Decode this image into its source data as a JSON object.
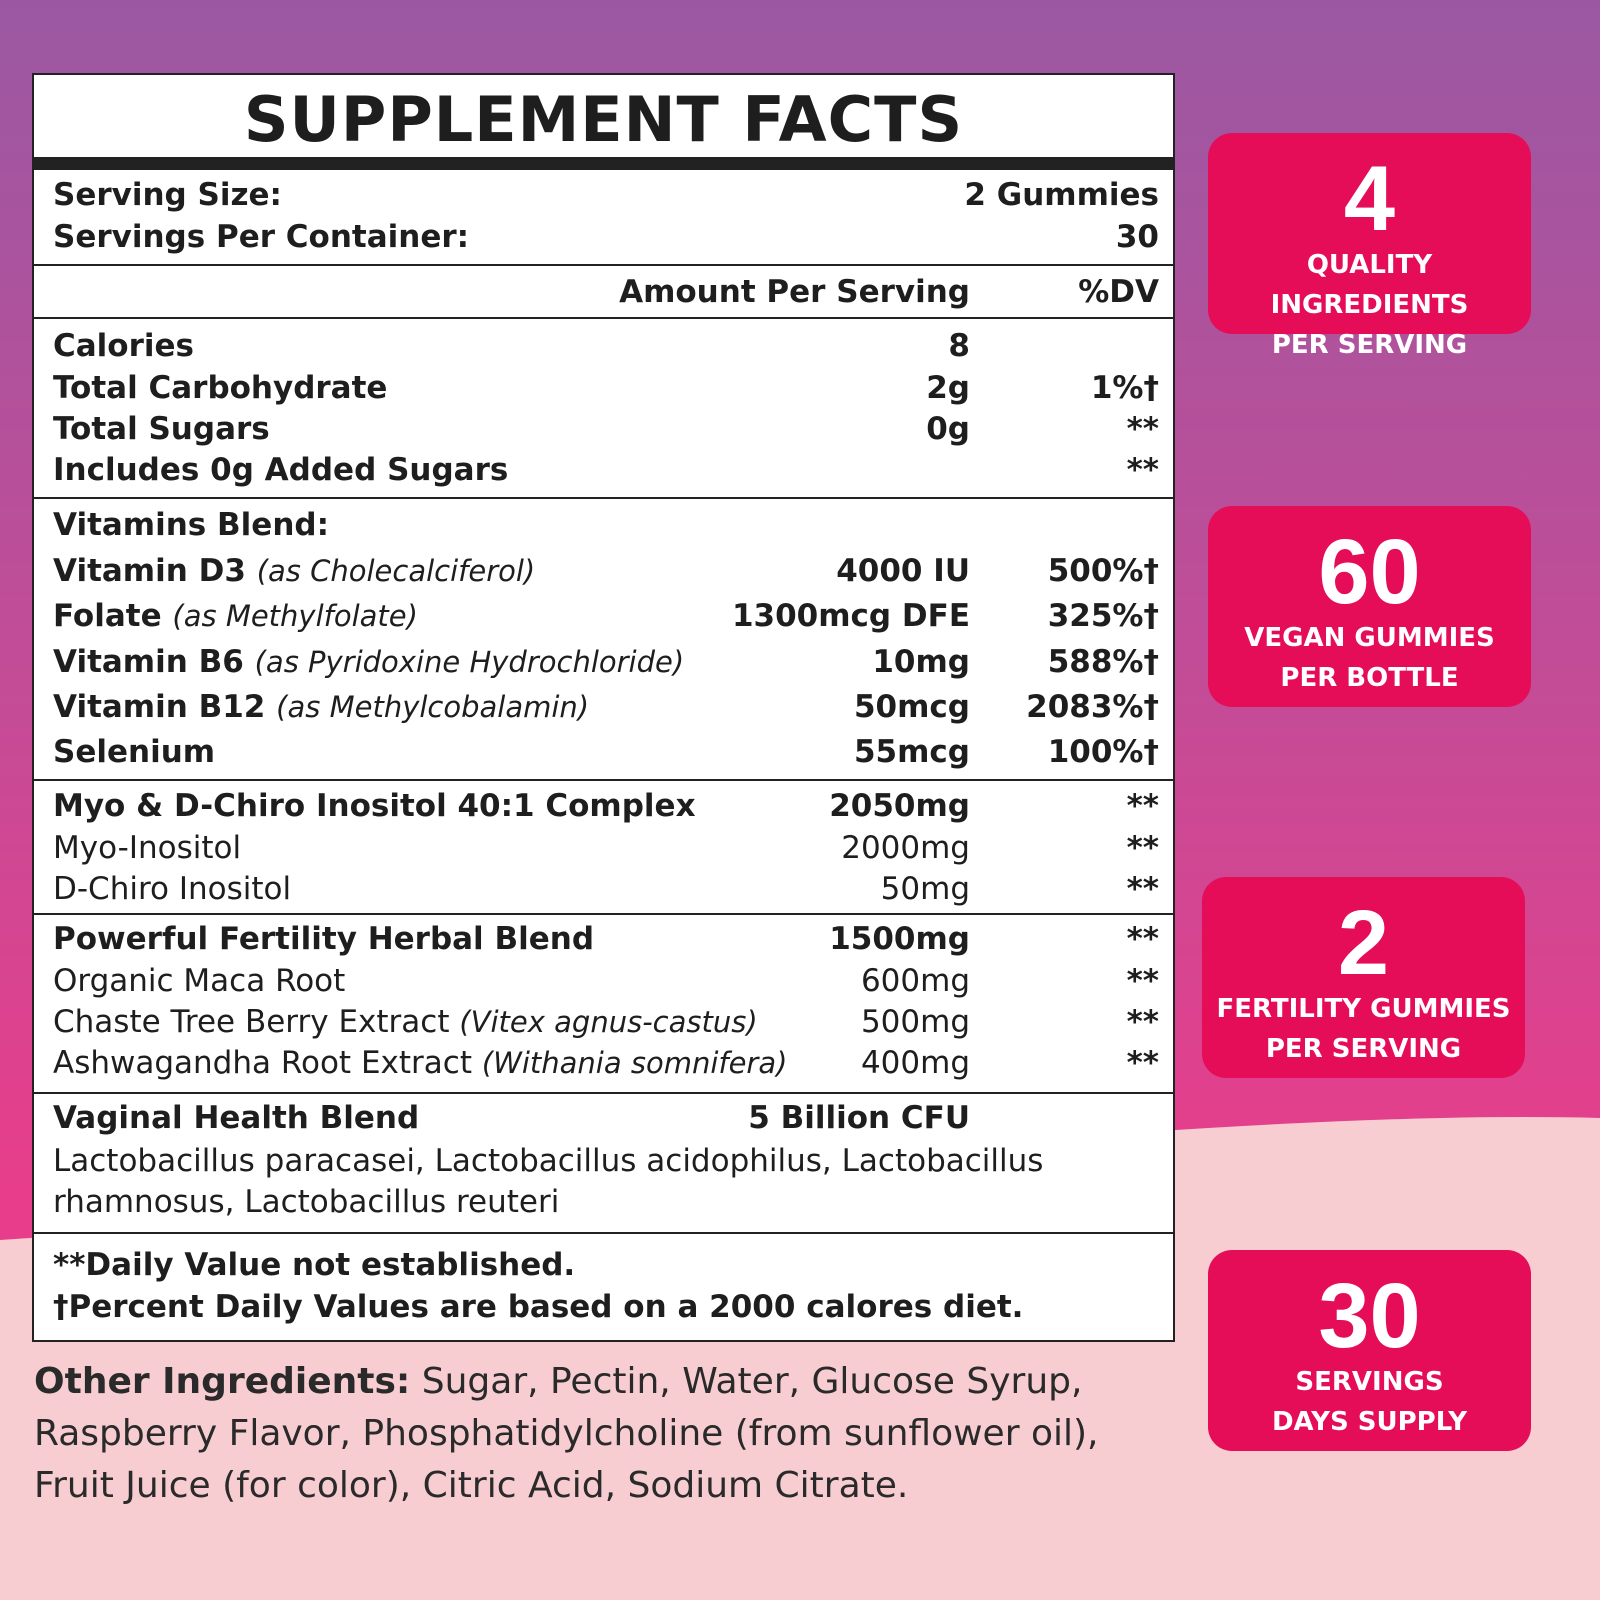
{
  "colors": {
    "badge": "#e50d58",
    "bg_top": "#9b58a2",
    "bg_mid": "#e83d8a",
    "bg_bottom": "#f7cdd2"
  },
  "label": {
    "title": "SUPPLEMENT FACTS",
    "serving_size_label": "Serving Size:",
    "serving_size_value": "2 Gummies",
    "servings_label": "Servings Per Container:",
    "servings_value": "30",
    "col_amount": "Amount Per Serving",
    "col_dv": "%DV",
    "rows": [
      {
        "name": "Calories",
        "amount": "8",
        "dv": ""
      },
      {
        "name": "Total Carbohydrate",
        "amount": "2g",
        "dv": "1%†"
      },
      {
        "name": "Total Sugars",
        "amount": "0g",
        "dv": "**"
      },
      {
        "name": "Includes 0g Added Sugars",
        "amount": "",
        "dv": "**"
      },
      {
        "name": "Vitamins Blend:",
        "amount": "",
        "dv": ""
      },
      {
        "name": "Vitamin D3",
        "note": "(as Cholecalciferol)",
        "amount": "4000 IU",
        "dv": "500%†"
      },
      {
        "name": "Folate",
        "note": "(as Methylfolate)",
        "amount": "1300mcg DFE",
        "dv": "325%†"
      },
      {
        "name": "Vitamin B6",
        "note": "(as Pyridoxine Hydrochloride)",
        "amount": "10mg",
        "dv": "588%†"
      },
      {
        "name": "Vitamin B12",
        "note": "(as Methylcobalamin)",
        "amount": "50mcg",
        "dv": "2083%†"
      },
      {
        "name": "Selenium",
        "amount": "55mcg",
        "dv": "100%†"
      },
      {
        "name": "Myo & D-Chiro Inositol 40:1 Complex",
        "amount": "2050mg",
        "dv": "**"
      },
      {
        "name": "Myo-Inositol",
        "amount": "2000mg",
        "dv": "**",
        "light": true
      },
      {
        "name": "D-Chiro Inositol",
        "amount": "50mg",
        "dv": "**",
        "light": true
      },
      {
        "name": "Powerful Fertility Herbal Blend",
        "amount": "1500mg",
        "dv": "**"
      },
      {
        "name": "Organic Maca Root",
        "amount": "600mg",
        "dv": "**",
        "light": true
      },
      {
        "name": "Chaste Tree Berry Extract",
        "note": "(Vitex agnus-castus)",
        "amount": "500mg",
        "dv": "**",
        "light": true
      },
      {
        "name": "Ashwagandha Root Extract",
        "note": "(Withania somnifera)",
        "amount": "400mg",
        "dv": "**",
        "light": true
      },
      {
        "name": "Vaginal Health Blend",
        "amount": "5 Billion CFU",
        "dv": ""
      }
    ],
    "probiotics_line1": "Lactobacillus  paracasei,  Lactobacillus  acidophilus,  Lactobacillus",
    "probiotics_line2": "rhamnosus, Lactobacillus reuteri",
    "footnote1": "**Daily Value not established.",
    "footnote2": "†Percent Daily Values are based on a 2000 calores diet."
  },
  "other_ingredients": {
    "label": "Other Ingredients:",
    "text": " Sugar, Pectin, Water, Glucose Syrup, Raspberry Flavor, Phosphatidylcholine (from sunflower oil), Fruit Juice (for color), Citric Acid, Sodium Citrate."
  },
  "badges": [
    {
      "number": "4",
      "line1": "QUALITY INGREDIENTS",
      "line2": "PER SERVING"
    },
    {
      "number": "60",
      "line1": "VEGAN GUMMIES",
      "line2": "PER BOTTLE"
    },
    {
      "number": "2",
      "line1": "FERTILITY GUMMIES",
      "line2": "PER SERVING"
    },
    {
      "number": "30",
      "line1": "SERVINGS",
      "line2": "DAYS SUPPLY"
    }
  ]
}
